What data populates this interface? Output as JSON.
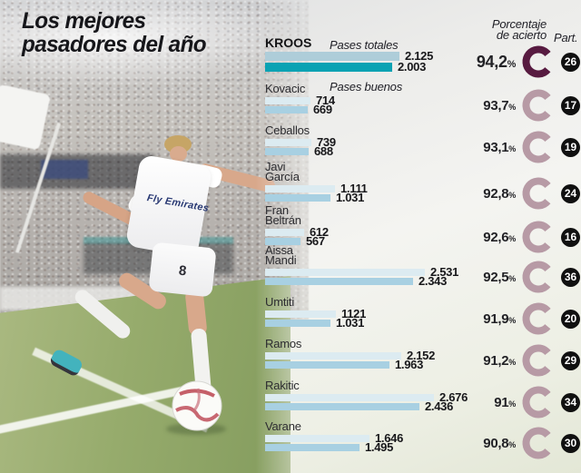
{
  "title_lines": [
    "Los mejores",
    "pasadores del año"
  ],
  "photo": {
    "jersey_sponsor": "Fly Emirates",
    "shorts_number": "8"
  },
  "colors": {
    "bar_totales": "#dcebf1",
    "bar_buenos": "#a8d0e2",
    "bar_totales_highlight": "#aecdd9",
    "bar_buenos_highlight": "#0aa2b3",
    "donut": "#b79aa5",
    "donut_highlight": "#571a40",
    "badge_bg": "#101010",
    "badge_text": "#ffffff"
  },
  "chart_data": {
    "type": "bar",
    "orientation": "horizontal",
    "title": "Los mejores pasadores del año",
    "series_labels": [
      "Pases totales",
      "Pases buenos"
    ],
    "pct_header_lines": [
      "Porcentaje",
      "de acierto"
    ],
    "part_header": "Part.",
    "pct_sign": "%",
    "xmax": 2676,
    "players": [
      {
        "name": "KROOS",
        "lines": [
          "KROOS"
        ],
        "pases_totales": 2125,
        "pases_buenos": 2003,
        "totales_label": "2.125",
        "buenos_label": "2.003",
        "accuracy_pct": 94.2,
        "pct_label": "94,2",
        "part": 26,
        "highlight": true
      },
      {
        "name": "Kovacic",
        "lines": [
          "Kovacic"
        ],
        "pases_totales": 714,
        "pases_buenos": 669,
        "totales_label": "714",
        "buenos_label": "669",
        "accuracy_pct": 93.7,
        "pct_label": "93,7",
        "part": 17,
        "highlight": false
      },
      {
        "name": "Ceballos",
        "lines": [
          "Ceballos"
        ],
        "pases_totales": 739,
        "pases_buenos": 688,
        "totales_label": "739",
        "buenos_label": "688",
        "accuracy_pct": 93.1,
        "pct_label": "93,1",
        "part": 19,
        "highlight": false
      },
      {
        "name": "Javi García",
        "lines": [
          "Javi",
          "García"
        ],
        "pases_totales": 1111,
        "pases_buenos": 1031,
        "totales_label": "1.111",
        "buenos_label": "1.031",
        "accuracy_pct": 92.8,
        "pct_label": "92,8",
        "part": 24,
        "highlight": false
      },
      {
        "name": "Fran Beltrán",
        "lines": [
          "Fran",
          "Beltrán"
        ],
        "pases_totales": 612,
        "pases_buenos": 567,
        "totales_label": "612",
        "buenos_label": "567",
        "accuracy_pct": 92.6,
        "pct_label": "92,6",
        "part": 16,
        "highlight": false
      },
      {
        "name": "Aissa Mandi",
        "lines": [
          "Aissa",
          "Mandi"
        ],
        "pases_totales": 2531,
        "pases_buenos": 2343,
        "totales_label": "2.531",
        "buenos_label": "2.343",
        "accuracy_pct": 92.5,
        "pct_label": "92,5",
        "part": 36,
        "highlight": false
      },
      {
        "name": "Umtiti",
        "lines": [
          "Umtiti"
        ],
        "pases_totales": 1121,
        "pases_buenos": 1031,
        "totales_label": "1121",
        "buenos_label": "1.031",
        "accuracy_pct": 91.9,
        "pct_label": "91,9",
        "part": 20,
        "highlight": false
      },
      {
        "name": "Ramos",
        "lines": [
          "Ramos"
        ],
        "pases_totales": 2152,
        "pases_buenos": 1963,
        "totales_label": "2.152",
        "buenos_label": "1.963",
        "accuracy_pct": 91.2,
        "pct_label": "91,2",
        "part": 29,
        "highlight": false
      },
      {
        "name": "Rakitic",
        "lines": [
          "Rakitic"
        ],
        "pases_totales": 2676,
        "pases_buenos": 2436,
        "totales_label": "2.676",
        "buenos_label": "2.436",
        "accuracy_pct": 91.0,
        "pct_label": "91",
        "part": 34,
        "highlight": false
      },
      {
        "name": "Varane",
        "lines": [
          "Varane"
        ],
        "pases_totales": 1646,
        "pases_buenos": 1495,
        "totales_label": "1.646",
        "buenos_label": "1.495",
        "accuracy_pct": 90.8,
        "pct_label": "90,8",
        "part": 30,
        "highlight": false
      }
    ]
  }
}
